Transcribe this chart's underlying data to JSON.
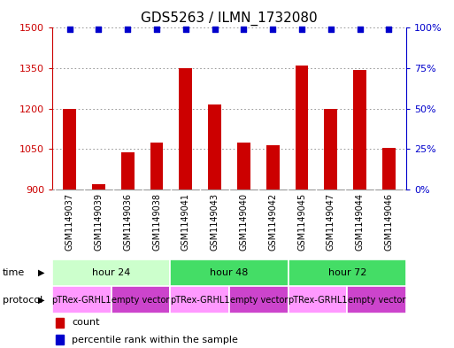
{
  "title": "GDS5263 / ILMN_1732080",
  "samples": [
    "GSM1149037",
    "GSM1149039",
    "GSM1149036",
    "GSM1149038",
    "GSM1149041",
    "GSM1149043",
    "GSM1149040",
    "GSM1149042",
    "GSM1149045",
    "GSM1149047",
    "GSM1149044",
    "GSM1149046"
  ],
  "counts": [
    1200,
    920,
    1040,
    1075,
    1350,
    1215,
    1075,
    1065,
    1360,
    1200,
    1345,
    1055
  ],
  "percentiles": [
    99,
    99,
    99,
    99,
    99,
    99,
    99,
    99,
    99,
    99,
    99,
    99
  ],
  "ylim_left": [
    900,
    1500
  ],
  "ylim_right": [
    0,
    100
  ],
  "yticks_left": [
    900,
    1050,
    1200,
    1350,
    1500
  ],
  "yticks_right": [
    0,
    25,
    50,
    75,
    100
  ],
  "bar_color": "#cc0000",
  "dot_color": "#0000cc",
  "grid_color": "#888888",
  "left_color": "#cc0000",
  "right_color": "#0000cc",
  "sample_bg": "#cccccc",
  "time_groups": [
    {
      "label": "hour 24",
      "start": 0,
      "end": 4,
      "color": "#ccffcc"
    },
    {
      "label": "hour 48",
      "start": 4,
      "end": 8,
      "color": "#44dd66"
    },
    {
      "label": "hour 72",
      "start": 8,
      "end": 12,
      "color": "#44dd66"
    }
  ],
  "protocol_groups": [
    {
      "label": "pTRex-GRHL1",
      "start": 0,
      "end": 2,
      "color": "#ff99ff"
    },
    {
      "label": "empty vector",
      "start": 2,
      "end": 4,
      "color": "#cc44cc"
    },
    {
      "label": "pTRex-GRHL1",
      "start": 4,
      "end": 6,
      "color": "#ff99ff"
    },
    {
      "label": "empty vector",
      "start": 6,
      "end": 8,
      "color": "#cc44cc"
    },
    {
      "label": "pTRex-GRHL1",
      "start": 8,
      "end": 10,
      "color": "#ff99ff"
    },
    {
      "label": "empty vector",
      "start": 10,
      "end": 12,
      "color": "#cc44cc"
    }
  ],
  "title_fontsize": 11,
  "tick_fontsize": 8,
  "small_fontsize": 7,
  "row_fontsize": 8,
  "prot_fontsize": 7
}
